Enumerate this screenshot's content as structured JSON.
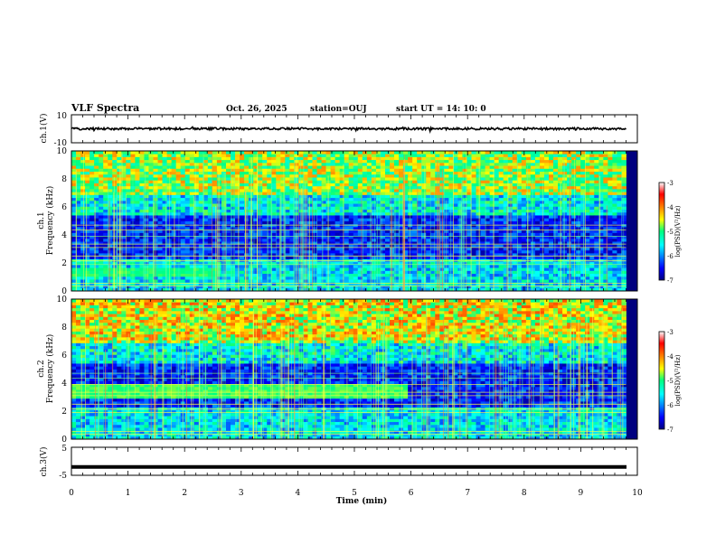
{
  "header": {
    "title": "VLF Spectra",
    "date": "Oct. 26, 2025",
    "station": "station=OUJ",
    "start": "start  UT =   14: 10: 0"
  },
  "chart_data": [
    {
      "type": "line",
      "name": "ch1-waveform",
      "ylabel": "ch.1(V)",
      "ylim": [
        -10,
        10
      ],
      "y_tick_labels": [
        "10",
        "-10"
      ],
      "baseline_value": 0,
      "noise_amplitude": 0.8,
      "xlim": [
        0,
        10
      ]
    },
    {
      "type": "heatmap",
      "name": "ch1-spectrogram",
      "ylabel_line1": "ch.1",
      "ylabel_line2": "Frequency (kHz)",
      "ylim": [
        0,
        10
      ],
      "y_tick_labels": [
        "0",
        "2",
        "4",
        "6",
        "8",
        "10"
      ],
      "colorbar": {
        "label": "log(PSD)(V²/Hz)",
        "range": [
          -7,
          -3
        ],
        "tick_labels": [
          "-3",
          "-4",
          "-5",
          "-6",
          "-7"
        ]
      }
    },
    {
      "type": "heatmap",
      "name": "ch2-spectrogram",
      "ylabel_line1": "ch.2",
      "ylabel_line2": "Frequency (kHz)",
      "ylim": [
        0,
        10
      ],
      "y_tick_labels": [
        "0",
        "2",
        "4",
        "6",
        "8",
        "10"
      ],
      "colorbar": {
        "label": "log(PSD)(V²/Hz)",
        "range": [
          -7,
          -3
        ],
        "tick_labels": [
          "-3",
          "-4",
          "-5",
          "-6",
          "-7"
        ]
      }
    },
    {
      "type": "line",
      "name": "ch3-waveform",
      "ylabel": "ch.3(V)",
      "ylim": [
        -5,
        5
      ],
      "y_tick_labels": [
        "5",
        "-5"
      ],
      "baseline_value": -2,
      "xlim": [
        0,
        10
      ]
    }
  ],
  "x_axis": {
    "label": "Time  (min)",
    "range": [
      0,
      10
    ],
    "tick_labels": [
      "0",
      "1",
      "2",
      "3",
      "4",
      "5",
      "6",
      "7",
      "8",
      "9",
      "10"
    ]
  },
  "colors": {
    "spec_low": "#00007f",
    "spec_mid": "#00ff7f",
    "spec_high": "#7f0000"
  }
}
